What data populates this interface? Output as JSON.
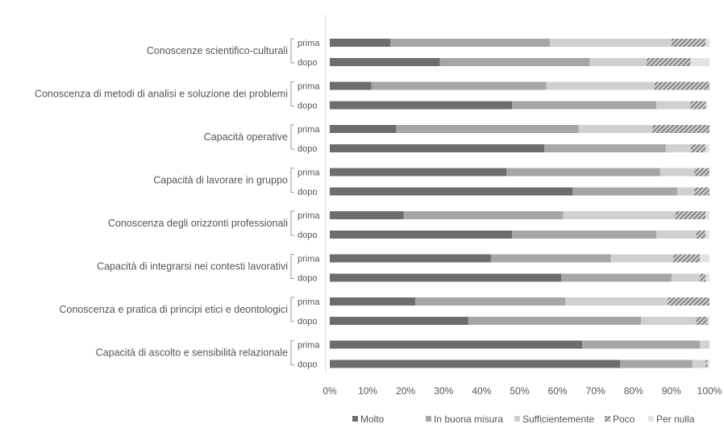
{
  "chart_data": {
    "type": "bar",
    "orientation": "horizontal",
    "stacked": "percent",
    "categories": [
      "Conoscenze scientifico-culturali",
      "Conoscenza di metodi di analisi e soluzione dei problemi",
      "Capacità operative",
      "Capacità di lavorare in gruppo",
      "Conoscenza degli orizzonti professionali",
      "Capacità di integrarsi nei contesti lavorativi",
      "Conoscenza e pratica di principi etici e deontologici",
      "Capacità di ascolto e sensibilità relazionale"
    ],
    "sub_categories": [
      "prima",
      "dopo"
    ],
    "series": [
      {
        "name": "Molto",
        "color": "#6d6d6d",
        "pattern": "solid",
        "values": [
          [
            16,
            29
          ],
          [
            11,
            48
          ],
          [
            17.5,
            56.5
          ],
          [
            46.5,
            64
          ],
          [
            19.5,
            48
          ],
          [
            42.5,
            61
          ],
          [
            22.5,
            36.5
          ],
          [
            66.5,
            76.5
          ]
        ]
      },
      {
        "name": "In buona misura",
        "color": "#a6a6a6",
        "pattern": "solid",
        "values": [
          [
            42,
            39.5
          ],
          [
            46,
            38
          ],
          [
            48,
            32
          ],
          [
            40.5,
            27.5
          ],
          [
            42,
            38
          ],
          [
            31.5,
            29
          ],
          [
            39.5,
            45.5
          ],
          [
            31,
            19
          ]
        ]
      },
      {
        "name": "Sufficientemente",
        "color": "#d0d0d0",
        "pattern": "solid",
        "values": [
          [
            32,
            15
          ],
          [
            28.5,
            9
          ],
          [
            19.5,
            6.5
          ],
          [
            9,
            4.5
          ],
          [
            29.5,
            10.5
          ],
          [
            16.5,
            7.5
          ],
          [
            27,
            14.5
          ],
          [
            2.5,
            3.5
          ]
        ]
      },
      {
        "name": "Poco",
        "color": "#7a7a7a",
        "pattern": "hatch",
        "values": [
          [
            9,
            11.5
          ],
          [
            14.5,
            4
          ],
          [
            15,
            4
          ],
          [
            4,
            4
          ],
          [
            8,
            2.5
          ],
          [
            7,
            1.5
          ],
          [
            11,
            3
          ],
          [
            0,
            0.5
          ]
        ]
      },
      {
        "name": "Per nulla",
        "color": "#e3e3e3",
        "pattern": "solid",
        "values": [
          [
            1,
            5
          ],
          [
            0,
            0.5
          ],
          [
            0,
            1
          ],
          [
            0,
            0
          ],
          [
            1,
            1
          ],
          [
            2.5,
            1
          ],
          [
            0,
            0.5
          ],
          [
            0,
            0.5
          ]
        ]
      }
    ],
    "xlim": [
      0,
      100
    ],
    "xticks": [
      "0%",
      "10%",
      "20%",
      "30%",
      "40%",
      "50%",
      "60%",
      "70%",
      "80%",
      "90%",
      "100%"
    ],
    "legend_position": "bottom",
    "grid": "none"
  }
}
